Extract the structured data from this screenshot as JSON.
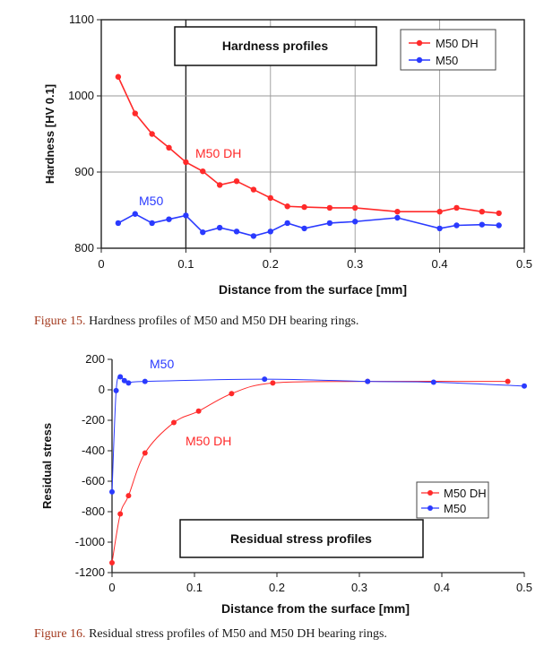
{
  "figures": [
    {
      "caption_label": "Figure 15.",
      "caption_text": " Hardness profiles of M50 and M50 DH bearing rings."
    },
    {
      "caption_label": "Figure 16.",
      "caption_text": " Residual stress profiles of M50 and M50 DH bearing rings."
    }
  ],
  "chart_data": [
    {
      "type": "line",
      "title": "Hardness profiles",
      "xlabel": "Distance from the surface [mm]",
      "ylabel": "Hardness [HV 0.1]",
      "xlim": [
        0,
        0.5
      ],
      "ylim": [
        800,
        1100
      ],
      "xticks": [
        "0",
        "0.1",
        "0.2",
        "0.3",
        "0.4",
        "0.5"
      ],
      "yticks": [
        "800",
        "900",
        "1000",
        "1100"
      ],
      "grid": true,
      "legend_position": "top-right",
      "series": [
        {
          "name": "M50 DH",
          "color": "#ff2a2a",
          "annotation": "M50 DH",
          "x": [
            0.02,
            0.04,
            0.06,
            0.08,
            0.1,
            0.12,
            0.14,
            0.16,
            0.18,
            0.2,
            0.22,
            0.24,
            0.27,
            0.3,
            0.35,
            0.4,
            0.42,
            0.45,
            0.47
          ],
          "y": [
            1025,
            977,
            950,
            932,
            913,
            901,
            883,
            888,
            877,
            866,
            855,
            854,
            853,
            853,
            848,
            848,
            853,
            848,
            846
          ]
        },
        {
          "name": "M50",
          "color": "#2a3aff",
          "annotation": "M50",
          "x": [
            0.02,
            0.04,
            0.06,
            0.08,
            0.1,
            0.12,
            0.14,
            0.16,
            0.18,
            0.2,
            0.22,
            0.24,
            0.27,
            0.3,
            0.35,
            0.4,
            0.42,
            0.45,
            0.47
          ],
          "y": [
            833,
            845,
            833,
            838,
            843,
            821,
            827,
            822,
            816,
            822,
            833,
            826,
            833,
            835,
            840,
            826,
            830,
            831,
            830
          ]
        }
      ]
    },
    {
      "type": "line",
      "title": "Residual stress profiles",
      "xlabel": "Distance from the surface [mm]",
      "ylabel": "Residual stress",
      "xlim": [
        0,
        0.5
      ],
      "ylim": [
        -1200,
        200
      ],
      "xticks": [
        "0",
        "0.1",
        "0.2",
        "0.3",
        "0.4",
        "0.5"
      ],
      "yticks": [
        "200",
        "0",
        "-200",
        "-400",
        "-600",
        "-800",
        "-1000",
        "-1200"
      ],
      "grid": false,
      "legend_position": "bottom-right",
      "series": [
        {
          "name": "M50 DH",
          "color": "#ff2a2a",
          "annotation": "M50 DH",
          "x": [
            0,
            0.01,
            0.02,
            0.04,
            0.075,
            0.105,
            0.145,
            0.195,
            0.31,
            0.48
          ],
          "y": [
            -1135,
            -815,
            -695,
            -415,
            -215,
            -140,
            -25,
            45,
            55,
            55
          ]
        },
        {
          "name": "M50",
          "color": "#2a3aff",
          "annotation": "M50",
          "x": [
            0,
            0.005,
            0.01,
            0.015,
            0.02,
            0.04,
            0.185,
            0.31,
            0.39,
            0.5
          ],
          "y": [
            -670,
            -5,
            85,
            60,
            45,
            55,
            70,
            55,
            50,
            25
          ]
        }
      ]
    }
  ]
}
